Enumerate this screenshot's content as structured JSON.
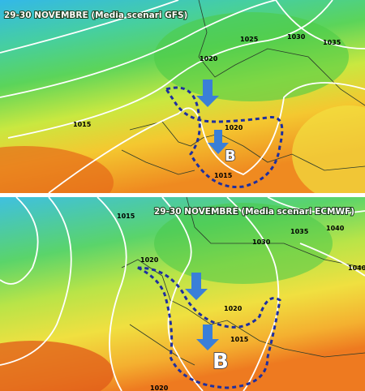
{
  "maps": [
    {
      "title": "29-30 NOVEMBRE (Media scenari GFS)",
      "isobar_labels": [
        "1025",
        "1030",
        "1035",
        "1020",
        "1015",
        "1020",
        "1015"
      ],
      "low_label": "B"
    },
    {
      "title": "29-30 NOVEMBRE (Media scenari ECMWF)",
      "isobar_labels": [
        "1015",
        "1035",
        "1040",
        "1030",
        "1020",
        "1040",
        "1020",
        "1015",
        "1020"
      ],
      "low_label": "B"
    }
  ]
}
